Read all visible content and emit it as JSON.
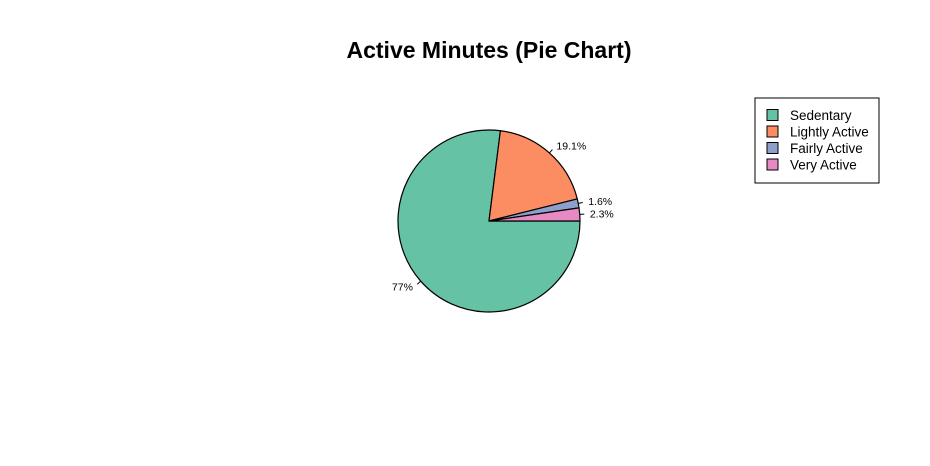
{
  "chart_data": {
    "type": "pie",
    "title": "Active Minutes (Pie Chart)",
    "categories": [
      "Sedentary",
      "Lightly Active",
      "Fairly Active",
      "Very Active"
    ],
    "values": [
      77,
      19.1,
      1.6,
      2.3
    ],
    "labels": [
      "77%",
      "19.1%",
      "1.6%",
      "2.3%"
    ],
    "colors": [
      "#66c2a5",
      "#fc8d62",
      "#8da0cb",
      "#e78ac3"
    ],
    "start_angle_deg": 0,
    "direction": "clockwise",
    "legend": {
      "position": "top-right",
      "entries": [
        "Sedentary",
        "Lightly Active",
        "Fairly Active",
        "Very Active"
      ]
    }
  }
}
